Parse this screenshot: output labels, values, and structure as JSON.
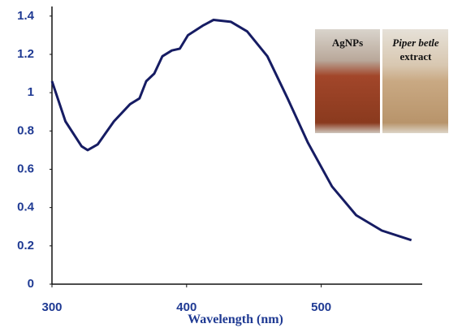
{
  "chart_data": {
    "type": "line",
    "x_label": "Wavelength (nm)",
    "x": [
      300,
      310,
      322,
      326.5,
      334,
      346,
      358,
      365,
      370,
      376,
      382,
      389,
      395,
      401,
      412,
      420,
      433,
      445,
      460,
      475,
      490,
      508,
      526,
      545,
      567
    ],
    "values": [
      1.06,
      0.85,
      0.72,
      0.7,
      0.73,
      0.85,
      0.94,
      0.97,
      1.06,
      1.1,
      1.19,
      1.22,
      1.23,
      1.3,
      1.35,
      1.38,
      1.37,
      1.32,
      1.19,
      0.97,
      0.74,
      0.51,
      0.36,
      0.28,
      0.23
    ],
    "color": "#161c63",
    "xlim": [
      300,
      575
    ],
    "xticks": [
      300,
      400,
      500
    ],
    "ylim": [
      0,
      1.45
    ],
    "yticks": [
      0,
      0.2,
      0.4,
      0.6,
      0.8,
      1,
      1.2,
      1.4
    ],
    "annotations": [
      "AgNPs",
      "Piper betle",
      "extract"
    ]
  }
}
